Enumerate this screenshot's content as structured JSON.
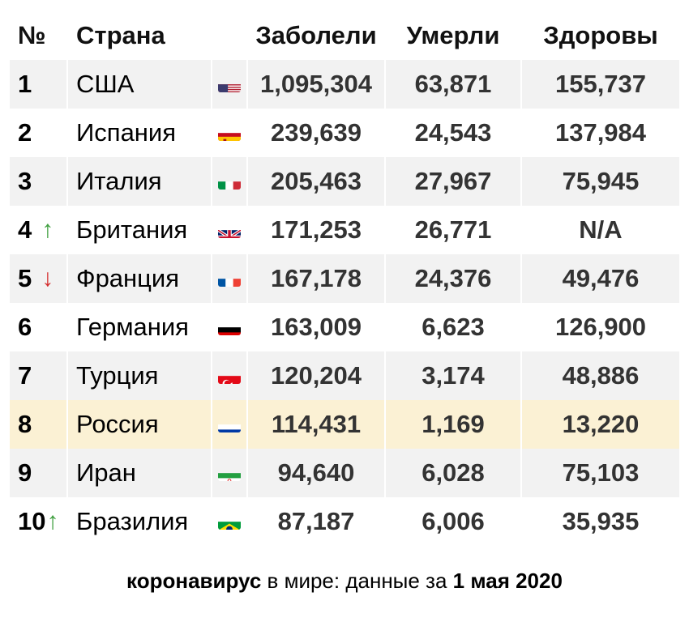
{
  "colors": {
    "row_shaded": "#f2f2f2",
    "row_highlight": "#fbf1d4",
    "arrow_up": "#3f9f3f",
    "arrow_down": "#d42b2b",
    "number_text": "#333333"
  },
  "chart_data": {
    "type": "table",
    "columns": [
      "№",
      "Страна",
      "Заболели",
      "Умерли",
      "Здоровы"
    ],
    "rows": [
      {
        "rank": "1",
        "trend": "",
        "country": "США",
        "flag": "us-flag-icon",
        "cases": "1,095,304",
        "deaths": "63,871",
        "recovered": "155,737"
      },
      {
        "rank": "2",
        "trend": "",
        "country": "Испания",
        "flag": "es-flag-icon",
        "cases": "239,639",
        "deaths": "24,543",
        "recovered": "137,984"
      },
      {
        "rank": "3",
        "trend": "",
        "country": "Италия",
        "flag": "it-flag-icon",
        "cases": "205,463",
        "deaths": "27,967",
        "recovered": "75,945"
      },
      {
        "rank": "4",
        "trend": "↑",
        "country": "Британия",
        "flag": "gb-flag-icon",
        "cases": "171,253",
        "deaths": "26,771",
        "recovered": "N/A"
      },
      {
        "rank": "5",
        "trend": "↓",
        "country": "Франция",
        "flag": "fr-flag-icon",
        "cases": "167,178",
        "deaths": "24,376",
        "recovered": "49,476"
      },
      {
        "rank": "6",
        "trend": "",
        "country": "Германия",
        "flag": "de-flag-icon",
        "cases": "163,009",
        "deaths": "6,623",
        "recovered": "126,900"
      },
      {
        "rank": "7",
        "trend": "",
        "country": "Турция",
        "flag": "tr-flag-icon",
        "cases": "120,204",
        "deaths": "3,174",
        "recovered": "48,886"
      },
      {
        "rank": "8",
        "trend": "",
        "country": "Россия",
        "flag": "ru-flag-icon",
        "cases": "114,431",
        "deaths": "1,169",
        "recovered": "13,220",
        "highlight": true
      },
      {
        "rank": "9",
        "trend": "",
        "country": "Иран",
        "flag": "ir-flag-icon",
        "cases": "94,640",
        "deaths": "6,028",
        "recovered": "75,103"
      },
      {
        "rank": "10",
        "trend": "↑",
        "country": "Бразилия",
        "flag": "br-flag-icon",
        "cases": "87,187",
        "deaths": "6,006",
        "recovered": "35,935"
      }
    ]
  },
  "caption": {
    "part1": "коронавирус",
    "part2": " в мире: данные за ",
    "part3": "1 мая 2020"
  }
}
